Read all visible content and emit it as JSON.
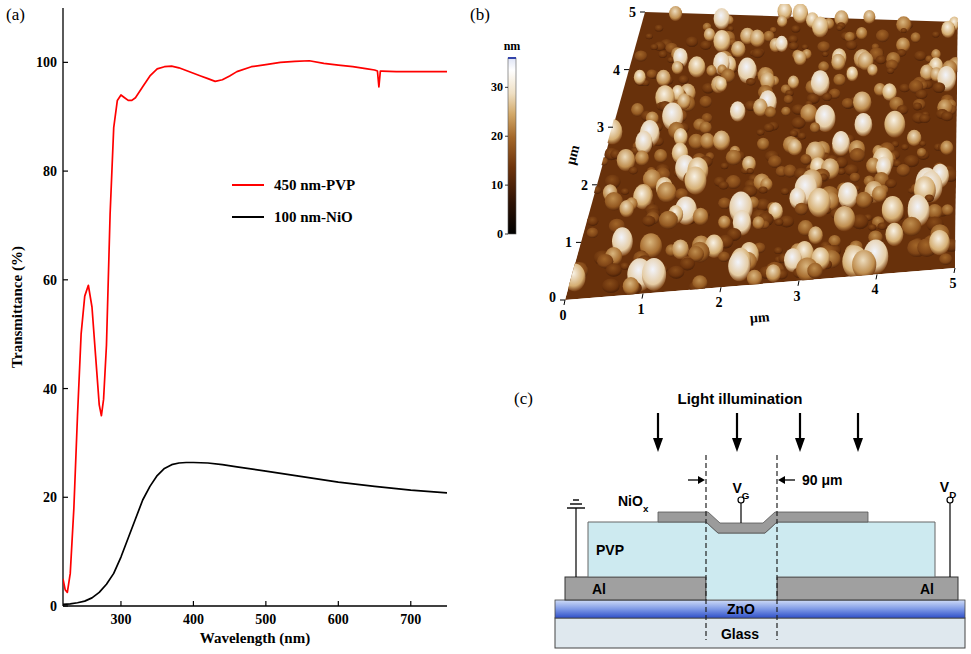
{
  "chart_data": {
    "type": "line",
    "panel_label": "(a)",
    "x_label": "Wavelength (nm)",
    "y_label": "Transmittance (%)",
    "xlim": [
      220,
      750
    ],
    "xticks": [
      300,
      400,
      500,
      600,
      700
    ],
    "ylim": [
      0,
      110
    ],
    "yticks": [
      0,
      20,
      40,
      60,
      80,
      100
    ],
    "legend": "upper right",
    "series": [
      {
        "name": "450 nm-PVP",
        "color": "#ff0000",
        "x": [
          220,
          223,
          226,
          230,
          235,
          240,
          245,
          250,
          255,
          260,
          265,
          270,
          273,
          276,
          280,
          285,
          290,
          295,
          300,
          305,
          310,
          315,
          320,
          330,
          340,
          350,
          360,
          370,
          380,
          390,
          400,
          410,
          420,
          430,
          440,
          450,
          460,
          480,
          500,
          520,
          540,
          560,
          580,
          600,
          620,
          640,
          650,
          654,
          656,
          658,
          660,
          680,
          700,
          720,
          750
        ],
        "values": [
          5,
          3,
          2.5,
          6,
          18,
          35,
          50,
          57,
          59,
          55,
          46,
          37,
          35,
          38,
          48,
          72,
          88,
          93,
          94,
          93.5,
          93,
          93,
          93.5,
          95.5,
          97.5,
          98.8,
          99.2,
          99.3,
          99,
          98.5,
          98,
          97.5,
          97,
          96.5,
          96.8,
          97.5,
          98.3,
          99.2,
          99.6,
          100,
          100.2,
          100.3,
          99.8,
          99.5,
          99.2,
          98.8,
          98.6,
          98.4,
          95.5,
          98.4,
          98.4,
          98.3,
          98.3,
          98.3,
          98.3
        ]
      },
      {
        "name": "100 nm-NiO",
        "color": "#000000",
        "x": [
          220,
          230,
          240,
          250,
          260,
          270,
          280,
          290,
          300,
          310,
          320,
          330,
          340,
          350,
          360,
          370,
          380,
          390,
          400,
          420,
          440,
          460,
          500,
          550,
          600,
          650,
          700,
          750
        ],
        "values": [
          0.3,
          0.4,
          0.6,
          0.9,
          1.5,
          2.5,
          4,
          6,
          9,
          12.5,
          16,
          19.5,
          22,
          24,
          25.3,
          26,
          26.3,
          26.4,
          26.4,
          26.3,
          26,
          25.6,
          24.8,
          23.8,
          22.8,
          22,
          21.3,
          20.8
        ]
      }
    ]
  },
  "afm": {
    "panel_label": "(b)",
    "colorbar_label": "nm",
    "colorbar_range": [
      0,
      36
    ],
    "colorbar_ticks": [
      0,
      10,
      20,
      30
    ],
    "x_label": "μm",
    "y_label": "μm",
    "x_ticks": [
      0,
      1,
      2,
      3,
      4,
      5
    ],
    "y_ticks": [
      0,
      1,
      2,
      3,
      4,
      5
    ]
  },
  "schematic": {
    "panel_label": "(c)",
    "illumination": "Light illumination",
    "channel_length": "90 μm",
    "gate": {
      "text": "V",
      "sub": "G"
    },
    "drain_bias": {
      "text": "V",
      "sub": "D"
    },
    "layers": {
      "top": {
        "text": "NiO",
        "sub": "x"
      },
      "dielectric": "PVP",
      "source": "Al",
      "drain": "Al",
      "semiconductor": "ZnO",
      "substrate": "Glass"
    }
  }
}
